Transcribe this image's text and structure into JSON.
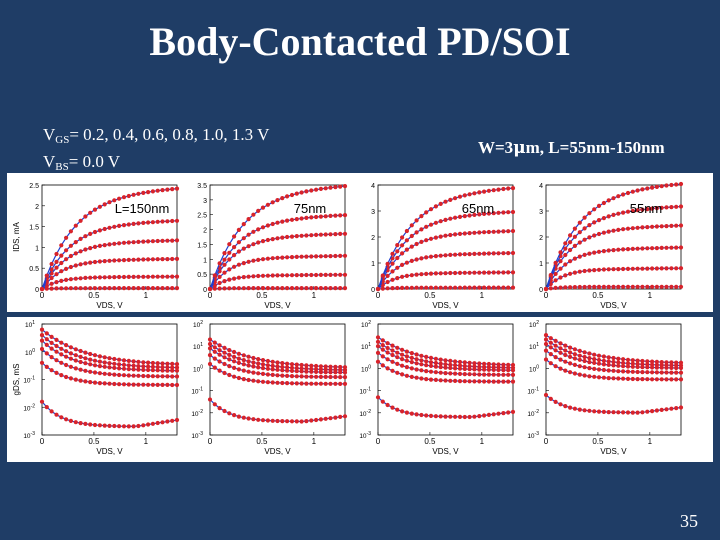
{
  "slide": {
    "title": "Body-Contacted PD/SOI",
    "vgs_prefix": "V",
    "vgs_sub": "GS",
    "vgs_values": "= 0.2, 0.4, 0.6, 0.8, 1.0, 1.3 V",
    "vbs_prefix": "V",
    "vbs_sub": "BS",
    "vbs_values": "= 0.0 V",
    "dims_w": "W=3",
    "dims_mu": "μ",
    "dims_rest": "m, L=55nm-150nm",
    "page_number": "35"
  },
  "colors": {
    "background": "#1f3d66",
    "model_line": "#1f3fd0",
    "measured_dots": "#d8232a",
    "figure_bg": "#ffffff"
  },
  "chart_data": [
    {
      "type": "line",
      "panel": "id-vds",
      "label": "L=150nm",
      "xlabel": "V_DS, V",
      "ylabel": "I_DS, mA",
      "xlim": [
        0,
        1.3
      ],
      "ylim": [
        0,
        2.5
      ],
      "xticks": [
        "0",
        "0.5",
        "1"
      ],
      "yticks": [
        "0",
        "0.5",
        "1",
        "1.5",
        "2",
        "2.5"
      ],
      "vgs": [
        0.2,
        0.4,
        0.6,
        0.8,
        1.0,
        1.3
      ],
      "saturation_current": [
        0.02,
        0.28,
        0.68,
        1.1,
        1.55,
        2.3
      ]
    },
    {
      "type": "line",
      "panel": "id-vds",
      "label": "75nm",
      "xlabel": "V_DS, V",
      "ylabel": "",
      "xlim": [
        0,
        1.3
      ],
      "ylim": [
        0,
        3.5
      ],
      "xticks": [
        "0",
        "0.5",
        "1"
      ],
      "yticks": [
        "0",
        "0.5",
        "1",
        "1.5",
        "2",
        "2.5",
        "3",
        "3.5"
      ],
      "vgs": [
        0.2,
        0.4,
        0.6,
        0.8,
        1.0,
        1.3
      ],
      "saturation_current": [
        0.03,
        0.45,
        1.05,
        1.75,
        2.35,
        3.3
      ]
    },
    {
      "type": "line",
      "panel": "id-vds",
      "label": "65nm",
      "xlabel": "V_DS, V",
      "ylabel": "",
      "xlim": [
        0,
        1.3
      ],
      "ylim": [
        0,
        4
      ],
      "xticks": [
        "0",
        "0.5",
        "1"
      ],
      "yticks": [
        "0",
        "1",
        "2",
        "3",
        "4"
      ],
      "vgs": [
        0.2,
        0.4,
        0.6,
        0.8,
        1.0,
        1.3
      ],
      "saturation_current": [
        0.05,
        0.6,
        1.3,
        2.1,
        2.8,
        3.7
      ]
    },
    {
      "type": "line",
      "panel": "id-vds",
      "label": "55nm",
      "xlabel": "V_DS, V",
      "ylabel": "",
      "xlim": [
        0,
        1.3
      ],
      "ylim": [
        0,
        4
      ],
      "xticks": [
        "0",
        "0.5",
        "1"
      ],
      "yticks": [
        "0",
        "1",
        "2",
        "3",
        "4"
      ],
      "vgs": [
        0.2,
        0.4,
        0.6,
        0.8,
        1.0,
        1.3
      ],
      "saturation_current": [
        0.08,
        0.75,
        1.5,
        2.3,
        3.0,
        3.85
      ]
    },
    {
      "type": "line",
      "panel": "gds-vds",
      "label": "",
      "xlabel": "V_DS, V",
      "ylabel": "g_DS, mS",
      "xlim": [
        0,
        1.3
      ],
      "ylim_log10": [
        -3,
        1
      ],
      "xticks": [
        "0",
        "0.5",
        "1"
      ],
      "yticks": [
        "10^1",
        "10^0",
        "10^-1",
        "10^-2",
        "10^-3"
      ],
      "vgs": [
        0.2,
        0.4,
        0.6,
        0.8,
        1.0,
        1.3
      ],
      "gds_at_zero_log10": [
        -1.8,
        -0.4,
        0.1,
        0.4,
        0.6,
        0.8
      ],
      "gds_floor_log10": [
        -2.7,
        -1.2,
        -0.9,
        -0.7,
        -0.6,
        -0.5
      ]
    },
    {
      "type": "line",
      "panel": "gds-vds",
      "label": "",
      "xlabel": "V_DS, V",
      "ylabel": "",
      "xlim": [
        0,
        1.3
      ],
      "ylim_log10": [
        -3,
        2
      ],
      "xticks": [
        "0",
        "0.5",
        "1"
      ],
      "yticks": [
        "10^2",
        "10^1",
        "10^0",
        "10^-1",
        "10^-2",
        "10^-3"
      ],
      "vgs": [
        0.2,
        0.4,
        0.6,
        0.8,
        1.0,
        1.3
      ],
      "gds_at_zero_log10": [
        -1.4,
        0.2,
        0.6,
        0.9,
        1.1,
        1.3
      ],
      "gds_floor_log10": [
        -2.4,
        -0.7,
        -0.4,
        -0.2,
        -0.1,
        0.0
      ]
    },
    {
      "type": "line",
      "panel": "gds-vds",
      "label": "",
      "xlabel": "V_DS, V",
      "ylabel": "",
      "xlim": [
        0,
        1.3
      ],
      "ylim_log10": [
        -3,
        2
      ],
      "xticks": [
        "0",
        "0.5",
        "1"
      ],
      "yticks": [
        "10^2",
        "10^1",
        "10^0",
        "10^-1",
        "10^-2",
        "10^-3"
      ],
      "vgs": [
        0.2,
        0.4,
        0.6,
        0.8,
        1.0,
        1.3
      ],
      "gds_at_zero_log10": [
        -1.3,
        0.3,
        0.7,
        1.0,
        1.2,
        1.4
      ],
      "gds_floor_log10": [
        -2.2,
        -0.6,
        -0.3,
        -0.1,
        0.0,
        0.1
      ]
    },
    {
      "type": "line",
      "panel": "gds-vds",
      "label": "",
      "xlabel": "V_DS, V",
      "ylabel": "",
      "xlim": [
        0,
        1.3
      ],
      "ylim_log10": [
        -3,
        2
      ],
      "xticks": [
        "0",
        "0.5",
        "1"
      ],
      "yticks": [
        "10^2",
        "10^1",
        "10^0",
        "10^-1",
        "10^-2",
        "10^-3"
      ],
      "vgs": [
        0.2,
        0.4,
        0.6,
        0.8,
        1.0,
        1.3
      ],
      "gds_at_zero_log10": [
        -1.2,
        0.4,
        0.8,
        1.1,
        1.3,
        1.5
      ],
      "gds_floor_log10": [
        -2.0,
        -0.5,
        -0.2,
        0.0,
        0.1,
        0.2
      ]
    }
  ]
}
